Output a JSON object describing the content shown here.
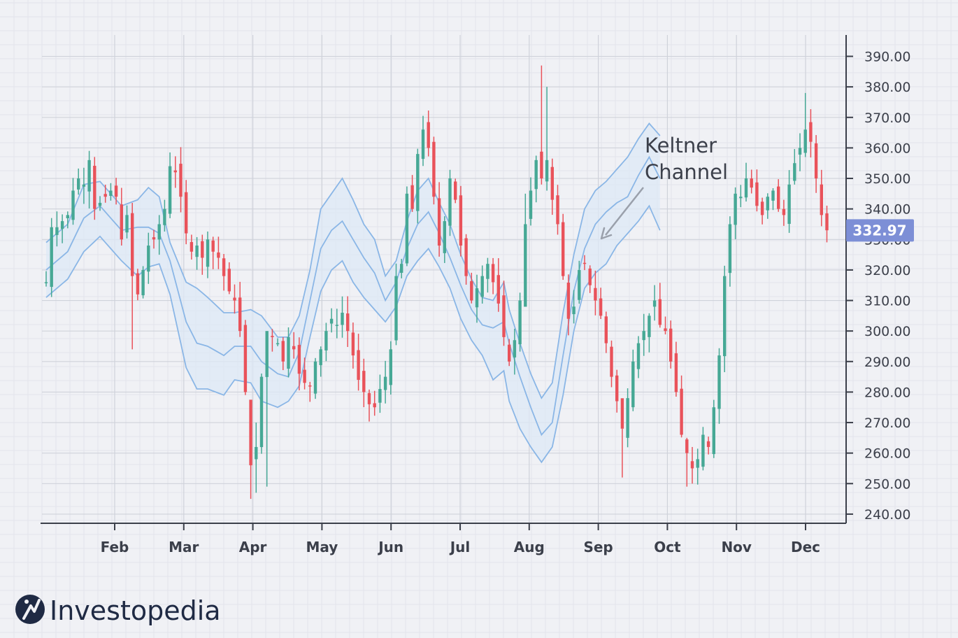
{
  "brand": {
    "name": "Investopedia"
  },
  "colors": {
    "background": "#f0f1f5",
    "grid_minor": "#e2e4eb",
    "grid_major": "#cfd2da",
    "up_candle": "#46a895",
    "down_candle": "#e9525a",
    "channel_line": "#8ab6e6",
    "channel_fill": "#dde8f6",
    "axis": "#3b3f4a",
    "last_price_bg": "#7d8fd6",
    "logo": "#1f2a44"
  },
  "chart_data": {
    "type": "candlestick",
    "title": "",
    "xlabel": "",
    "ylabel": "",
    "y_axis_position": "right",
    "ylim": [
      237,
      397
    ],
    "grid": true,
    "months": [
      "Feb",
      "Mar",
      "Apr",
      "May",
      "Jun",
      "Jul",
      "Aug",
      "Sep",
      "Oct",
      "Nov",
      "Dec"
    ],
    "y_ticks": [
      "240.00",
      "250.00",
      "260.00",
      "270.00",
      "280.00",
      "290.00",
      "300.00",
      "310.00",
      "320.00",
      "330.00",
      "340.00",
      "350.00",
      "360.00",
      "370.00",
      "380.00",
      "390.00"
    ],
    "last_price": "332.97",
    "annotation": {
      "line1": "Keltner",
      "line2": "Channel"
    },
    "keltner_channel": {
      "upper_anchors": [
        [
          0,
          329
        ],
        [
          4,
          335
        ],
        [
          7,
          348
        ],
        [
          10,
          349
        ],
        [
          14,
          341
        ],
        [
          17,
          343
        ],
        [
          19,
          347
        ],
        [
          21,
          344
        ],
        [
          23,
          329
        ],
        [
          26,
          316
        ],
        [
          28,
          314
        ],
        [
          30,
          311
        ],
        [
          33,
          306
        ],
        [
          35,
          306
        ],
        [
          38,
          307
        ],
        [
          40,
          305
        ],
        [
          43,
          298
        ],
        [
          45,
          298
        ],
        [
          47,
          305
        ],
        [
          49,
          320
        ],
        [
          51,
          340
        ],
        [
          53,
          345
        ],
        [
          55,
          350
        ],
        [
          57,
          343
        ],
        [
          59,
          335
        ],
        [
          61,
          330
        ],
        [
          63,
          318
        ],
        [
          65,
          323
        ],
        [
          67,
          336
        ],
        [
          69,
          346
        ],
        [
          71,
          350
        ],
        [
          73,
          342
        ],
        [
          75,
          335
        ],
        [
          77,
          325
        ],
        [
          79,
          317
        ],
        [
          81,
          311
        ],
        [
          83,
          310
        ],
        [
          85,
          316
        ],
        [
          86,
          307
        ],
        [
          88,
          296
        ],
        [
          90,
          286
        ],
        [
          92,
          278
        ],
        [
          94,
          283
        ],
        [
          96,
          306
        ],
        [
          98,
          325
        ],
        [
          100,
          340
        ],
        [
          102,
          346
        ],
        [
          104,
          349
        ],
        [
          106,
          353
        ],
        [
          108,
          357
        ],
        [
          110,
          363
        ],
        [
          112,
          368
        ],
        [
          114,
          364
        ]
      ],
      "middle_anchors": [
        [
          0,
          320
        ],
        [
          4,
          326
        ],
        [
          7,
          337
        ],
        [
          10,
          341
        ],
        [
          14,
          333
        ],
        [
          17,
          334
        ],
        [
          19,
          334
        ],
        [
          21,
          332
        ],
        [
          23,
          323
        ],
        [
          26,
          303
        ],
        [
          28,
          296
        ],
        [
          30,
          295
        ],
        [
          33,
          292
        ],
        [
          35,
          295
        ],
        [
          38,
          295
        ],
        [
          40,
          290
        ],
        [
          43,
          286
        ],
        [
          45,
          285
        ],
        [
          47,
          293
        ],
        [
          49,
          310
        ],
        [
          51,
          327
        ],
        [
          53,
          333
        ],
        [
          55,
          336
        ],
        [
          57,
          330
        ],
        [
          59,
          324
        ],
        [
          61,
          319
        ],
        [
          63,
          310
        ],
        [
          65,
          316
        ],
        [
          67,
          327
        ],
        [
          69,
          335
        ],
        [
          71,
          339
        ],
        [
          73,
          332
        ],
        [
          75,
          324
        ],
        [
          77,
          315
        ],
        [
          79,
          307
        ],
        [
          81,
          302
        ],
        [
          83,
          301
        ],
        [
          85,
          303
        ],
        [
          86,
          296
        ],
        [
          88,
          285
        ],
        [
          90,
          275
        ],
        [
          92,
          266
        ],
        [
          94,
          270
        ],
        [
          96,
          292
        ],
        [
          98,
          313
        ],
        [
          100,
          327
        ],
        [
          102,
          335
        ],
        [
          104,
          339
        ],
        [
          106,
          342
        ],
        [
          108,
          344
        ],
        [
          110,
          351
        ],
        [
          112,
          357
        ],
        [
          114,
          350
        ]
      ],
      "lower_anchors": [
        [
          0,
          311
        ],
        [
          4,
          317
        ],
        [
          7,
          326
        ],
        [
          10,
          331
        ],
        [
          14,
          323
        ],
        [
          17,
          318
        ],
        [
          19,
          321
        ],
        [
          21,
          322
        ],
        [
          23,
          312
        ],
        [
          26,
          288
        ],
        [
          28,
          281
        ],
        [
          30,
          281
        ],
        [
          33,
          279
        ],
        [
          35,
          284
        ],
        [
          38,
          283
        ],
        [
          40,
          277
        ],
        [
          43,
          275
        ],
        [
          45,
          277
        ],
        [
          47,
          282
        ],
        [
          49,
          298
        ],
        [
          51,
          313
        ],
        [
          53,
          320
        ],
        [
          55,
          323
        ],
        [
          57,
          316
        ],
        [
          59,
          311
        ],
        [
          61,
          307
        ],
        [
          63,
          303
        ],
        [
          65,
          308
        ],
        [
          67,
          318
        ],
        [
          69,
          323
        ],
        [
          71,
          327
        ],
        [
          73,
          321
        ],
        [
          75,
          314
        ],
        [
          77,
          304
        ],
        [
          79,
          297
        ],
        [
          81,
          292
        ],
        [
          83,
          284
        ],
        [
          85,
          287
        ],
        [
          86,
          277
        ],
        [
          88,
          268
        ],
        [
          90,
          262
        ],
        [
          92,
          257
        ],
        [
          94,
          262
        ],
        [
          96,
          279
        ],
        [
          98,
          300
        ],
        [
          100,
          314
        ],
        [
          102,
          319
        ],
        [
          104,
          322
        ],
        [
          106,
          328
        ],
        [
          108,
          332
        ],
        [
          110,
          336
        ],
        [
          112,
          341
        ],
        [
          114,
          333
        ]
      ]
    },
    "candle_anchors": [
      [
        0,
        316
      ],
      [
        1,
        334
      ],
      [
        2,
        334
      ],
      [
        3,
        336
      ],
      [
        4,
        338
      ],
      [
        5,
        346
      ],
      [
        6,
        350
      ],
      [
        7,
        348
      ],
      [
        8,
        356
      ],
      [
        9,
        340
      ],
      [
        10,
        342
      ],
      [
        11,
        344
      ],
      [
        12,
        346
      ],
      [
        13,
        344
      ],
      [
        14,
        330
      ],
      [
        15,
        338
      ],
      [
        16,
        318
      ],
      [
        17,
        312
      ],
      [
        18,
        320
      ],
      [
        19,
        328
      ],
      [
        20,
        330
      ],
      [
        21,
        335
      ],
      [
        22,
        340
      ],
      [
        23,
        354
      ],
      [
        24,
        352
      ],
      [
        25,
        344
      ],
      [
        26,
        332
      ],
      [
        27,
        326
      ],
      [
        28,
        328
      ],
      [
        29,
        324
      ],
      [
        30,
        330
      ],
      [
        31,
        326
      ],
      [
        32,
        324
      ],
      [
        33,
        318
      ],
      [
        34,
        313
      ],
      [
        35,
        310
      ],
      [
        36,
        300
      ],
      [
        37,
        280
      ],
      [
        38,
        256
      ],
      [
        39,
        262
      ],
      [
        40,
        285
      ],
      [
        41,
        300
      ],
      [
        42,
        298
      ],
      [
        43,
        296
      ],
      [
        44,
        290
      ],
      [
        45,
        298
      ],
      [
        46,
        294
      ],
      [
        47,
        286
      ],
      [
        48,
        283
      ],
      [
        49,
        282
      ],
      [
        50,
        290
      ],
      [
        51,
        294
      ],
      [
        52,
        300
      ],
      [
        53,
        304
      ],
      [
        54,
        302
      ],
      [
        55,
        306
      ],
      [
        56,
        300
      ],
      [
        57,
        292
      ],
      [
        58,
        284
      ],
      [
        59,
        280
      ],
      [
        60,
        276
      ],
      [
        61,
        275
      ],
      [
        62,
        281
      ],
      [
        63,
        285
      ],
      [
        64,
        294
      ],
      [
        65,
        318
      ],
      [
        66,
        322
      ],
      [
        67,
        345
      ],
      [
        68,
        340
      ],
      [
        69,
        358
      ],
      [
        70,
        366
      ],
      [
        71,
        360
      ],
      [
        72,
        344
      ],
      [
        73,
        328
      ],
      [
        74,
        336
      ],
      [
        75,
        350
      ],
      [
        76,
        343
      ],
      [
        77,
        328
      ],
      [
        78,
        318
      ],
      [
        79,
        310
      ],
      [
        80,
        314
      ],
      [
        81,
        318
      ],
      [
        82,
        322
      ],
      [
        83,
        316
      ],
      [
        84,
        309
      ],
      [
        85,
        298
      ],
      [
        86,
        290
      ],
      [
        87,
        297
      ],
      [
        88,
        310
      ],
      [
        89,
        335
      ],
      [
        90,
        346
      ],
      [
        91,
        356
      ],
      [
        92,
        350
      ],
      [
        93,
        356
      ],
      [
        94,
        343
      ],
      [
        95,
        335
      ],
      [
        96,
        318
      ],
      [
        97,
        304
      ],
      [
        98,
        308
      ],
      [
        99,
        320
      ],
      [
        100,
        322
      ],
      [
        101,
        315
      ],
      [
        102,
        310
      ],
      [
        103,
        305
      ],
      [
        104,
        296
      ],
      [
        105,
        285
      ],
      [
        106,
        277
      ],
      [
        107,
        268
      ],
      [
        108,
        278
      ],
      [
        109,
        290
      ],
      [
        110,
        296
      ],
      [
        111,
        300
      ],
      [
        112,
        305
      ],
      [
        113,
        310
      ],
      [
        114,
        302
      ],
      [
        115,
        300
      ],
      [
        116,
        290
      ],
      [
        117,
        280
      ],
      [
        118,
        266
      ],
      [
        119,
        260
      ],
      [
        120,
        255
      ],
      [
        121,
        258
      ],
      [
        122,
        266
      ],
      [
        123,
        262
      ],
      [
        124,
        275
      ],
      [
        125,
        292
      ],
      [
        126,
        318
      ],
      [
        127,
        335
      ],
      [
        128,
        345
      ],
      [
        129,
        344
      ],
      [
        130,
        350
      ],
      [
        131,
        347
      ],
      [
        132,
        341
      ],
      [
        133,
        338
      ],
      [
        134,
        344
      ],
      [
        135,
        346
      ],
      [
        136,
        340
      ],
      [
        137,
        338
      ],
      [
        138,
        348
      ],
      [
        139,
        355
      ],
      [
        140,
        360
      ],
      [
        141,
        366
      ],
      [
        142,
        362
      ],
      [
        143,
        350
      ],
      [
        144,
        338
      ],
      [
        145,
        333
      ]
    ],
    "spike_candles": [
      {
        "index": 16,
        "high": 342,
        "low": 294
      },
      {
        "index": 38,
        "high": 266,
        "low": 245
      },
      {
        "index": 39,
        "high": 270,
        "low": 247
      },
      {
        "index": 41,
        "high": 295,
        "low": 249
      },
      {
        "index": 89,
        "high": 345,
        "low": 320
      },
      {
        "index": 92,
        "high": 387,
        "low": 348
      },
      {
        "index": 93,
        "high": 380,
        "low": 346
      },
      {
        "index": 107,
        "high": 268,
        "low": 252
      },
      {
        "index": 119,
        "high": 265,
        "low": 249
      },
      {
        "index": 120,
        "high": 262,
        "low": 250
      },
      {
        "index": 141,
        "high": 378,
        "low": 357
      }
    ]
  }
}
